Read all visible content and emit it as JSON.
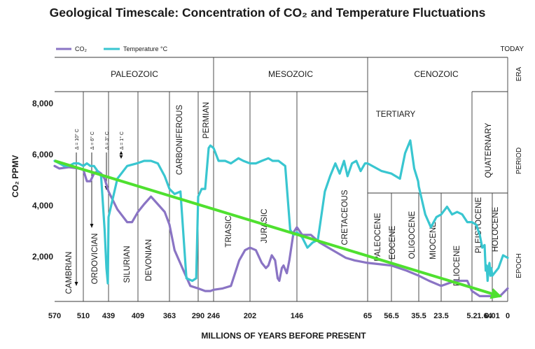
{
  "chart_data": {
    "type": "line",
    "title": "Geological Timescale: Concentration of CO₂ and Temperature Fluctuations",
    "ylabel": "CO₂ PPMV",
    "xlabel": "MILLIONS OF YEARS BEFORE PRESENT",
    "ylim": [
      0,
      8500
    ],
    "yticks": [
      2000,
      4000,
      6000,
      8000
    ],
    "ytick_labels": [
      "2,000",
      "4,000",
      "6,000",
      "8,000"
    ],
    "x_tick_labels": [
      "570",
      "510",
      "439",
      "409",
      "363",
      "290",
      "246",
      "202",
      "146",
      "65",
      "56.5",
      "35.5",
      "23.5",
      "5.2",
      "1.64",
      "0.01",
      "0"
    ],
    "x_scale": "stepped geological boundaries (non-linear)",
    "today_label": "TODAY",
    "row_labels": [
      "ERA",
      "PERIOD",
      "EPOCH"
    ],
    "eras": [
      "PALEOZOIC",
      "MESOZOIC",
      "CENOZOIC"
    ],
    "periods": [
      "CAMBRIAN",
      "ORDOVICIAN",
      "SILURIAN",
      "DEVONIAN",
      "CARBONIFEROUS",
      "PERMIAN",
      "TRIASIC",
      "JURASIC",
      "CRETACEOUS",
      "TERTIARY",
      "QUATERNARY"
    ],
    "epochs": [
      "PALEOCENE",
      "EOCENE",
      "OLIGOCENE",
      "MIOCENE",
      "PLIOCENE",
      "PLEISTOCENE",
      "HOLOCENE"
    ],
    "annotations": [
      "Δ = 10° C",
      "Δ = 6° C",
      "Δ = 3° C",
      "Δ = 1° C"
    ],
    "legend_position": "top-left",
    "series": [
      {
        "name": "CO₂",
        "color": "#8a74c4",
        "points": [
          [
            570,
            5500
          ],
          [
            560,
            5400
          ],
          [
            540,
            5450
          ],
          [
            520,
            5400
          ],
          [
            510,
            5350
          ],
          [
            500,
            4900
          ],
          [
            490,
            4900
          ],
          [
            480,
            5200
          ],
          [
            470,
            5300
          ],
          [
            460,
            5200
          ],
          [
            450,
            5000
          ],
          [
            439,
            4500
          ],
          [
            430,
            3800
          ],
          [
            420,
            3300
          ],
          [
            415,
            3300
          ],
          [
            409,
            3700
          ],
          [
            400,
            4000
          ],
          [
            390,
            4300
          ],
          [
            380,
            4000
          ],
          [
            370,
            3700
          ],
          [
            363,
            3200
          ],
          [
            350,
            2200
          ],
          [
            330,
            1500
          ],
          [
            310,
            800
          ],
          [
            290,
            700
          ],
          [
            270,
            600
          ],
          [
            255,
            600
          ],
          [
            246,
            650
          ],
          [
            235,
            700
          ],
          [
            225,
            800
          ],
          [
            215,
            1800
          ],
          [
            208,
            2200
          ],
          [
            202,
            2300
          ],
          [
            195,
            2200
          ],
          [
            188,
            1700
          ],
          [
            183,
            1500
          ],
          [
            180,
            1600
          ],
          [
            176,
            2000
          ],
          [
            172,
            1800
          ],
          [
            169,
            1100
          ],
          [
            167,
            1000
          ],
          [
            164,
            1500
          ],
          [
            162,
            1600
          ],
          [
            158,
            1300
          ],
          [
            155,
            1800
          ],
          [
            150,
            2900
          ],
          [
            146,
            3100
          ],
          [
            140,
            2800
          ],
          [
            130,
            2800
          ],
          [
            120,
            2500
          ],
          [
            110,
            2300
          ],
          [
            100,
            2100
          ],
          [
            90,
            1900
          ],
          [
            80,
            1800
          ],
          [
            65,
            1700
          ],
          [
            56.5,
            1600
          ],
          [
            45,
            1400
          ],
          [
            35.5,
            1200
          ],
          [
            30,
            1000
          ],
          [
            23.5,
            800
          ],
          [
            15,
            1000
          ],
          [
            8,
            1000
          ],
          [
            5.2,
            600
          ],
          [
            3,
            400
          ],
          [
            1.64,
            400
          ],
          [
            1,
            400
          ],
          [
            0.5,
            400
          ],
          [
            0.01,
            400
          ],
          [
            0.005,
            400
          ],
          [
            0,
            700
          ]
        ]
      },
      {
        "name": "Temperature °C",
        "color": "#39c6d0",
        "points": [
          [
            570,
            5700
          ],
          [
            560,
            5600
          ],
          [
            550,
            5500
          ],
          [
            540,
            5500
          ],
          [
            530,
            5600
          ],
          [
            520,
            5600
          ],
          [
            510,
            5500
          ],
          [
            500,
            5600
          ],
          [
            490,
            5500
          ],
          [
            480,
            5500
          ],
          [
            470,
            5300
          ],
          [
            460,
            5100
          ],
          [
            450,
            3000
          ],
          [
            445,
            1500
          ],
          [
            441,
            900
          ],
          [
            439,
            3500
          ],
          [
            430,
            5000
          ],
          [
            420,
            5500
          ],
          [
            410,
            5600
          ],
          [
            400,
            5700
          ],
          [
            390,
            5700
          ],
          [
            380,
            5600
          ],
          [
            370,
            5100
          ],
          [
            363,
            4600
          ],
          [
            350,
            4400
          ],
          [
            335,
            4500
          ],
          [
            320,
            1100
          ],
          [
            305,
            1000
          ],
          [
            295,
            1100
          ],
          [
            290,
            4300
          ],
          [
            280,
            4600
          ],
          [
            270,
            4600
          ],
          [
            260,
            6200
          ],
          [
            255,
            6300
          ],
          [
            246,
            6200
          ],
          [
            240,
            5700
          ],
          [
            232,
            5700
          ],
          [
            225,
            5600
          ],
          [
            216,
            5800
          ],
          [
            210,
            5700
          ],
          [
            202,
            5600
          ],
          [
            195,
            5600
          ],
          [
            188,
            5700
          ],
          [
            180,
            5800
          ],
          [
            175,
            5700
          ],
          [
            168,
            5700
          ],
          [
            160,
            5500
          ],
          [
            154,
            3000
          ],
          [
            150,
            2800
          ],
          [
            146,
            2900
          ],
          [
            140,
            2700
          ],
          [
            134,
            2300
          ],
          [
            128,
            2500
          ],
          [
            122,
            2600
          ],
          [
            114,
            4500
          ],
          [
            108,
            5100
          ],
          [
            102,
            5600
          ],
          [
            97,
            5200
          ],
          [
            92,
            5700
          ],
          [
            88,
            5100
          ],
          [
            83,
            5600
          ],
          [
            78,
            5700
          ],
          [
            73,
            5300
          ],
          [
            68,
            5600
          ],
          [
            65,
            5600
          ],
          [
            60,
            5300
          ],
          [
            56.5,
            5200
          ],
          [
            50,
            5000
          ],
          [
            46,
            6000
          ],
          [
            42,
            6500
          ],
          [
            39,
            5400
          ],
          [
            36,
            4900
          ],
          [
            35.5,
            4700
          ],
          [
            32,
            3600
          ],
          [
            29,
            3100
          ],
          [
            26,
            3500
          ],
          [
            23.5,
            3600
          ],
          [
            20,
            3900
          ],
          [
            17,
            3600
          ],
          [
            14,
            3700
          ],
          [
            11,
            3600
          ],
          [
            8,
            3300
          ],
          [
            6,
            3300
          ],
          [
            5.2,
            3300
          ],
          [
            4,
            3200
          ],
          [
            3,
            2800
          ],
          [
            2.3,
            2300
          ],
          [
            1.64,
            2400
          ],
          [
            1.4,
            1400
          ],
          [
            1.2,
            1600
          ],
          [
            1,
            1000
          ],
          [
            0.8,
            1500
          ],
          [
            0.6,
            1700
          ],
          [
            0.4,
            1200
          ],
          [
            0.2,
            1500
          ],
          [
            0.01,
            1200
          ],
          [
            0.006,
            1500
          ],
          [
            0.003,
            2000
          ],
          [
            0,
            1900
          ]
        ]
      }
    ],
    "trend_line": {
      "color": "#4fe02f",
      "from": [
        570,
        5700
      ],
      "to": [
        0.005,
        400
      ]
    }
  }
}
